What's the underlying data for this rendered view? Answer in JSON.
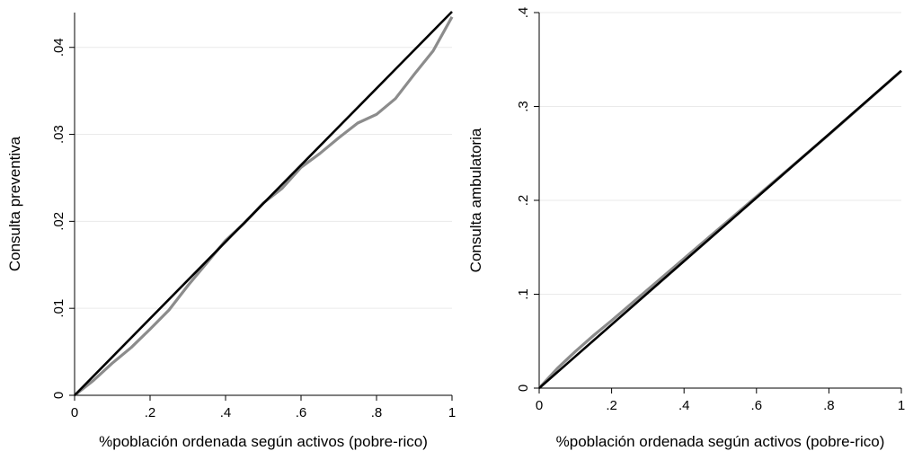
{
  "chart_data": [
    {
      "type": "line",
      "ylabel": "Consulta preventiva",
      "xlabel": "%población ordenada según activos (pobre-rico)",
      "xlim": [
        0,
        1
      ],
      "ylim": [
        0,
        0.044
      ],
      "x_ticks": [
        0,
        0.2,
        0.4,
        0.6,
        0.8,
        1
      ],
      "x_tick_labels": [
        "0",
        ".2",
        ".4",
        ".6",
        ".8",
        "1"
      ],
      "y_ticks": [
        0,
        0.01,
        0.02,
        0.03,
        0.04
      ],
      "y_tick_labels": [
        "0",
        ".01",
        ".02",
        ".03",
        ".04"
      ],
      "grid": true,
      "series": [
        {
          "color": "#8c8c8c",
          "x": [
            0,
            0.05,
            0.1,
            0.15,
            0.2,
            0.25,
            0.3,
            0.35,
            0.4,
            0.45,
            0.5,
            0.55,
            0.6,
            0.65,
            0.7,
            0.75,
            0.8,
            0.85,
            0.9,
            0.95,
            1
          ],
          "y": [
            0,
            0.0017,
            0.0037,
            0.0055,
            0.0076,
            0.0098,
            0.0126,
            0.0152,
            0.0178,
            0.0198,
            0.0221,
            0.0238,
            0.0262,
            0.0278,
            0.0296,
            0.0313,
            0.0323,
            0.0341,
            0.0369,
            0.0396,
            0.0435
          ]
        },
        {
          "color": "#000000",
          "x": [
            0,
            1
          ],
          "y": [
            0,
            0.0441
          ]
        }
      ]
    },
    {
      "type": "line",
      "ylabel": "Consulta ambulatoria",
      "xlabel": "%población ordenada según activos (pobre-rico)",
      "xlim": [
        0,
        1
      ],
      "ylim": [
        0,
        0.4
      ],
      "x_ticks": [
        0,
        0.2,
        0.4,
        0.6,
        0.8,
        1
      ],
      "x_tick_labels": [
        "0",
        ".2",
        ".4",
        ".6",
        ".8",
        "1"
      ],
      "y_ticks": [
        0,
        0.1,
        0.2,
        0.3,
        0.4
      ],
      "y_tick_labels": [
        "0",
        ".1",
        ".2",
        ".3",
        ".4"
      ],
      "grid": true,
      "series": [
        {
          "color": "#8c8c8c",
          "x": [
            0,
            0.05,
            0.1,
            0.15,
            0.2,
            0.3,
            0.4,
            0.5,
            0.6,
            0.7,
            0.8,
            0.9,
            1
          ],
          "y": [
            0,
            0.021,
            0.039,
            0.056,
            0.072,
            0.105,
            0.138,
            0.171,
            0.204,
            0.237,
            0.27,
            0.304,
            0.338
          ]
        },
        {
          "color": "#000000",
          "x": [
            0,
            1
          ],
          "y": [
            0,
            0.338
          ]
        }
      ]
    }
  ]
}
